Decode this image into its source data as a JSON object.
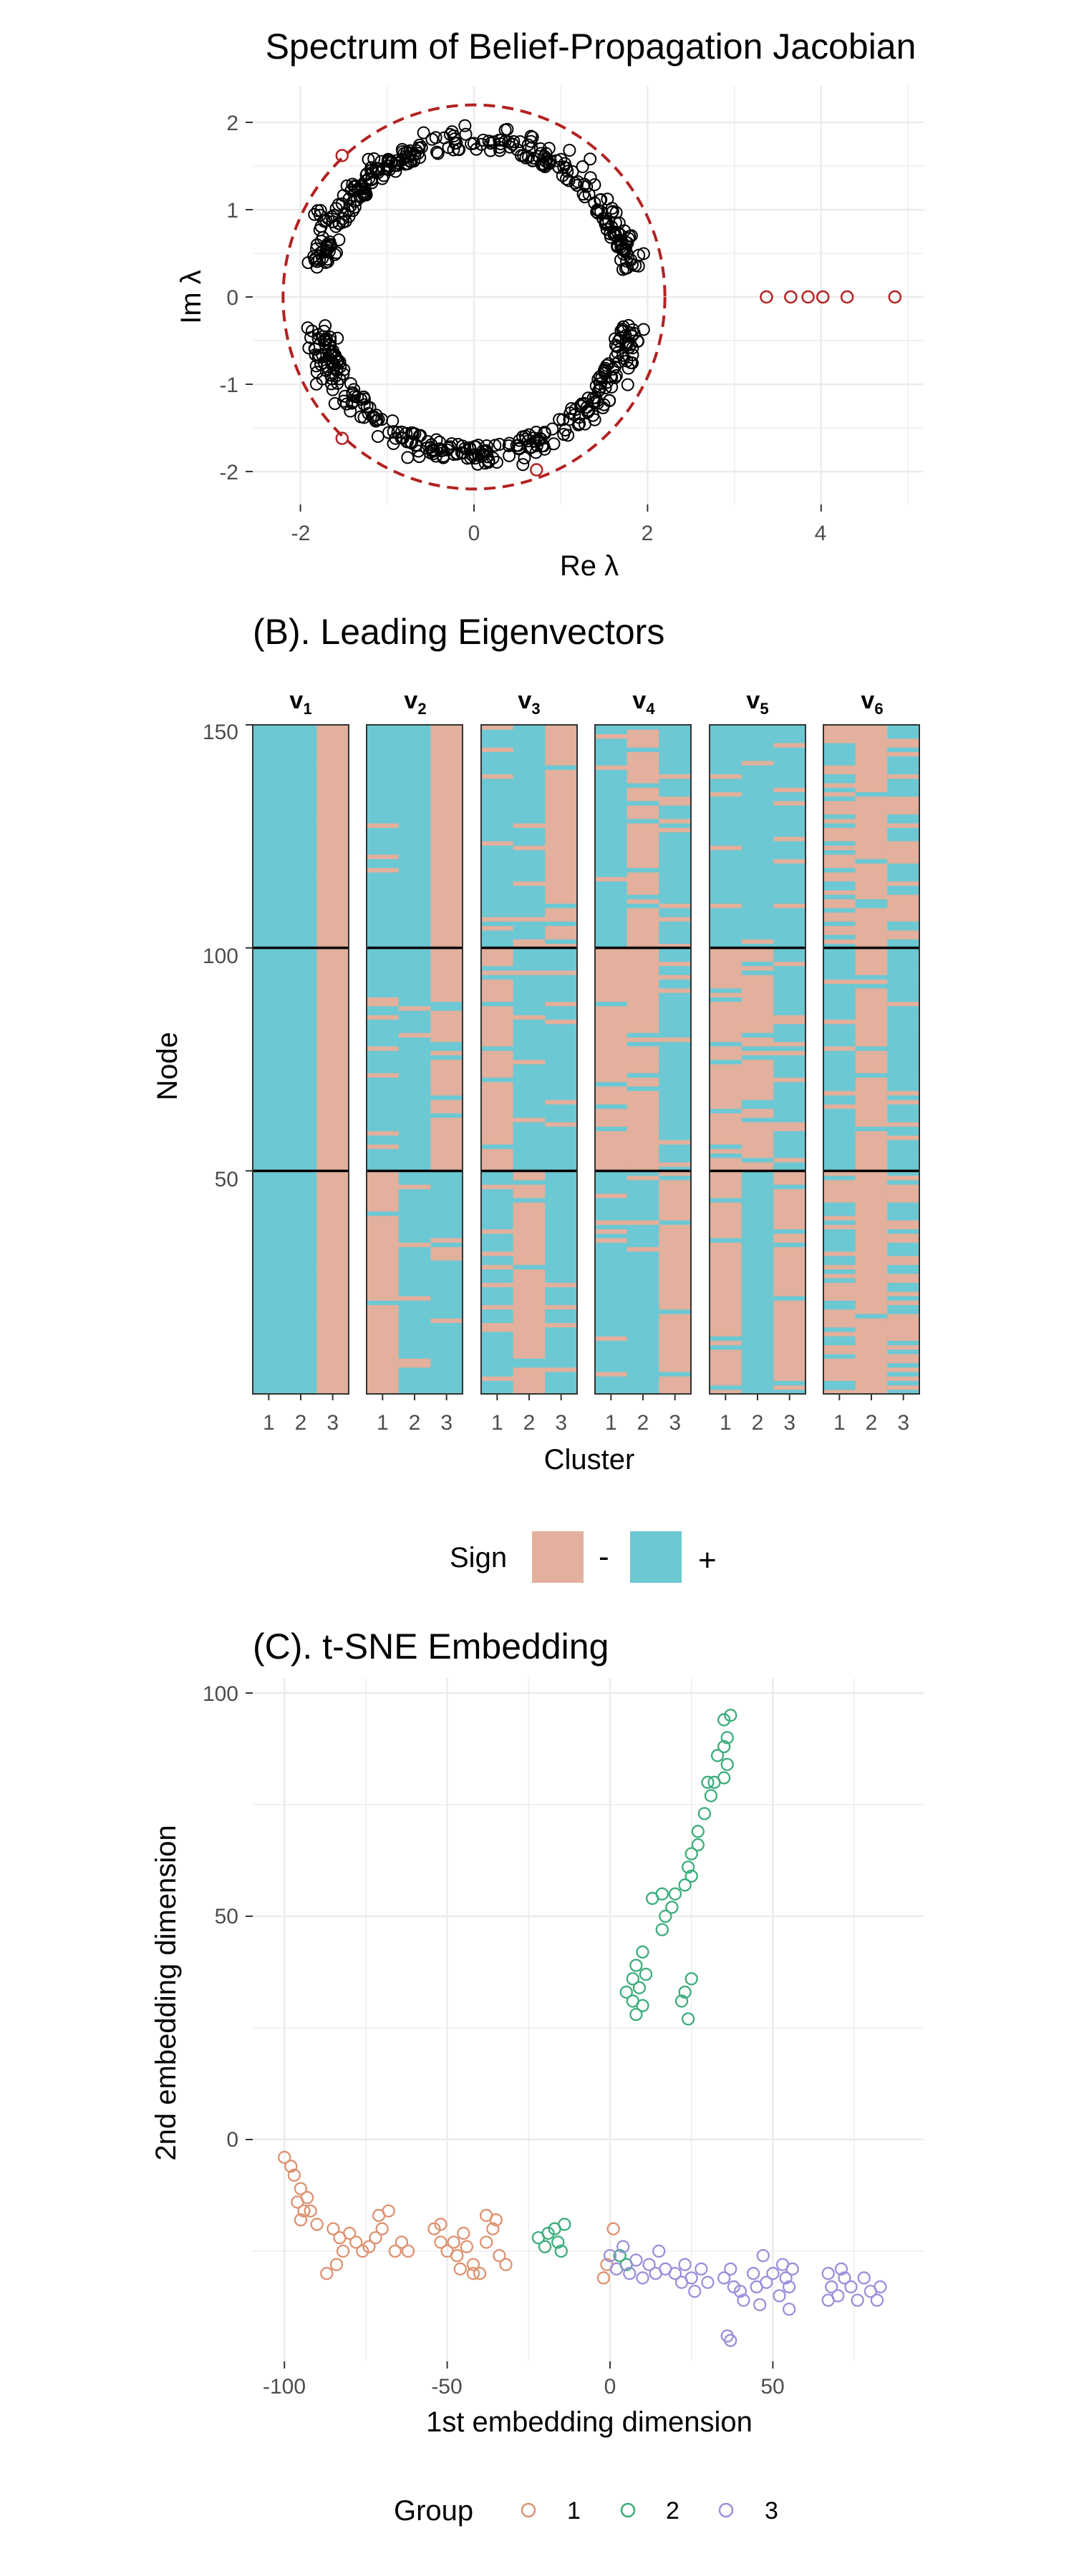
{
  "colors": {
    "grid": "#ebebeb",
    "circle": "#b22222",
    "neg": "#e2b09c",
    "pos": "#6cc8d3",
    "group1": "#dd9270",
    "group2": "#3cad7b",
    "group3": "#9b8fdb",
    "axis_text": "#4d4d4d"
  },
  "chart_data": [
    {
      "type": "scatter",
      "title": "Spectrum of Belief-Propagation Jacobian",
      "xlabel": "Re λ",
      "ylabel": "Im λ",
      "xlim": [
        -2.3,
        5.1
      ],
      "ylim": [
        -2.2,
        2.2
      ],
      "x_ticks": [
        -2,
        0,
        2,
        4
      ],
      "y_ticks": [
        -2,
        -1,
        0,
        1,
        2
      ],
      "grid": true,
      "bulk_circle": {
        "center": [
          0,
          0
        ],
        "radius": 2.2,
        "style": "dashed"
      },
      "bulk_eigenvalues": {
        "count": 596,
        "description": "complex eigenvalues concentrated on two arcs near |lambda| = 2, upper and lower half-planes"
      },
      "outlier_eigenvalues": [
        {
          "re": 3.37,
          "im": 0
        },
        {
          "re": 3.65,
          "im": 0
        },
        {
          "re": 3.85,
          "im": 0
        },
        {
          "re": 4.02,
          "im": 0
        },
        {
          "re": 4.3,
          "im": 0
        },
        {
          "re": 4.85,
          "im": 0
        }
      ]
    },
    {
      "type": "heatmap",
      "title": "(B). Leading Eigenvectors",
      "xlabel": "Cluster",
      "ylabel": "Node",
      "panels": [
        "v",
        "v",
        "v",
        "v",
        "v",
        "v"
      ],
      "panel_subscripts": [
        "1",
        "2",
        "3",
        "4",
        "5",
        "6"
      ],
      "x_ticks": [
        "1",
        "2",
        "3"
      ],
      "y_ticks": [
        50,
        100,
        150
      ],
      "ylim": [
        1,
        150
      ],
      "cluster_boundaries": [
        50,
        100
      ],
      "legend": {
        "title": "Sign",
        "labels": [
          "-",
          "+"
        ]
      },
      "dominant_sign": [
        [
          "+",
          "+",
          "-"
        ],
        [
          "-/+",
          "+",
          "+/-"
        ],
        [
          "+/-",
          "-/+",
          "+/-"
        ],
        [
          "+/-",
          "-/+",
          "+/-"
        ],
        [
          "-/+",
          "+/-",
          "+/-"
        ],
        [
          "mixed",
          "-",
          "mixed"
        ]
      ]
    },
    {
      "type": "scatter",
      "title": "(C). t-SNE Embedding",
      "xlabel": "1st embedding dimension",
      "ylabel": "2nd embedding dimension",
      "xlim": [
        -110,
        95
      ],
      "ylim": [
        -50,
        100
      ],
      "x_ticks": [
        -100,
        -50,
        0,
        50
      ],
      "y_ticks": [
        0,
        50,
        100
      ],
      "grid": true,
      "legend": {
        "title": "Group",
        "labels": [
          "1",
          "2",
          "3"
        ]
      },
      "series": [
        {
          "name": "1",
          "points": [
            [
              -100,
              -4
            ],
            [
              -98,
              -6
            ],
            [
              -97,
              -8
            ],
            [
              -95,
              -11
            ],
            [
              -96,
              -14
            ],
            [
              -94,
              -16
            ],
            [
              -92,
              -16
            ],
            [
              -93,
              -13
            ],
            [
              -95,
              -18
            ],
            [
              -90,
              -19
            ],
            [
              -85,
              -20
            ],
            [
              -83,
              -22
            ],
            [
              -80,
              -21
            ],
            [
              -78,
              -23
            ],
            [
              -76,
              -25
            ],
            [
              -74,
              -24
            ],
            [
              -72,
              -22
            ],
            [
              -70,
              -20
            ],
            [
              -71,
              -17
            ],
            [
              -68,
              -16
            ],
            [
              -66,
              -25
            ],
            [
              -64,
              -23
            ],
            [
              -62,
              -25
            ],
            [
              -82,
              -25
            ],
            [
              -84,
              -28
            ],
            [
              -87,
              -30
            ],
            [
              -54,
              -20
            ],
            [
              -52,
              -23
            ],
            [
              -50,
              -25
            ],
            [
              -48,
              -23
            ],
            [
              -47,
              -26
            ],
            [
              -45,
              -21
            ],
            [
              -44,
              -24
            ],
            [
              -42,
              -28
            ],
            [
              -40,
              -30
            ],
            [
              -38,
              -23
            ],
            [
              -36,
              -20
            ],
            [
              -34,
              -26
            ],
            [
              -32,
              -28
            ],
            [
              -35,
              -18
            ],
            [
              -38,
              -17
            ],
            [
              -42,
              -30
            ],
            [
              -46,
              -29
            ],
            [
              -52,
              -19
            ],
            [
              1,
              -20
            ],
            [
              -1,
              -28
            ],
            [
              -2,
              -31
            ]
          ]
        },
        {
          "name": "2",
          "points": [
            [
              37,
              95
            ],
            [
              35,
              94
            ],
            [
              36,
              90
            ],
            [
              35,
              88
            ],
            [
              33,
              86
            ],
            [
              36,
              84
            ],
            [
              32,
              80
            ],
            [
              35,
              81
            ],
            [
              30,
              80
            ],
            [
              31,
              77
            ],
            [
              29,
              73
            ],
            [
              27,
              69
            ],
            [
              27,
              66
            ],
            [
              25,
              64
            ],
            [
              24,
              61
            ],
            [
              25,
              59
            ],
            [
              23,
              57
            ],
            [
              20,
              55
            ],
            [
              19,
              52
            ],
            [
              17,
              50
            ],
            [
              16,
              47
            ],
            [
              16,
              55
            ],
            [
              13,
              54
            ],
            [
              10,
              42
            ],
            [
              8,
              39
            ],
            [
              11,
              37
            ],
            [
              7,
              36
            ],
            [
              9,
              34
            ],
            [
              5,
              33
            ],
            [
              7,
              31
            ],
            [
              10,
              30
            ],
            [
              8,
              28
            ],
            [
              25,
              36
            ],
            [
              23,
              33
            ],
            [
              22,
              31
            ],
            [
              24,
              27
            ],
            [
              -22,
              -22
            ],
            [
              -19,
              -21
            ],
            [
              -16,
              -23
            ],
            [
              -17,
              -20
            ],
            [
              -14,
              -19
            ],
            [
              -20,
              -24
            ],
            [
              -15,
              -25
            ],
            [
              3,
              -26
            ],
            [
              5,
              -28
            ]
          ]
        },
        {
          "name": "3",
          "points": [
            [
              0,
              -26
            ],
            [
              2,
              -29
            ],
            [
              4,
              -24
            ],
            [
              6,
              -30
            ],
            [
              8,
              -27
            ],
            [
              10,
              -31
            ],
            [
              12,
              -28
            ],
            [
              14,
              -30
            ],
            [
              15,
              -25
            ],
            [
              17,
              -29
            ],
            [
              20,
              -30
            ],
            [
              22,
              -32
            ],
            [
              23,
              -28
            ],
            [
              25,
              -31
            ],
            [
              26,
              -34
            ],
            [
              28,
              -29
            ],
            [
              30,
              -32
            ],
            [
              35,
              -31
            ],
            [
              37,
              -29
            ],
            [
              38,
              -33
            ],
            [
              40,
              -34
            ],
            [
              41,
              -36
            ],
            [
              44,
              -30
            ],
            [
              45,
              -33
            ],
            [
              47,
              -26
            ],
            [
              46,
              -37
            ],
            [
              48,
              -32
            ],
            [
              50,
              -30
            ],
            [
              52,
              -35
            ],
            [
              53,
              -28
            ],
            [
              54,
              -31
            ],
            [
              55,
              -33
            ],
            [
              56,
              -29
            ],
            [
              55,
              -38
            ],
            [
              36,
              -44
            ],
            [
              37,
              -45
            ],
            [
              67,
              -30
            ],
            [
              68,
              -33
            ],
            [
              70,
              -35
            ],
            [
              72,
              -31
            ],
            [
              74,
              -33
            ],
            [
              76,
              -36
            ],
            [
              78,
              -31
            ],
            [
              80,
              -34
            ],
            [
              82,
              -36
            ],
            [
              83,
              -33
            ],
            [
              67,
              -36
            ],
            [
              71,
              -29
            ]
          ]
        }
      ]
    }
  ]
}
